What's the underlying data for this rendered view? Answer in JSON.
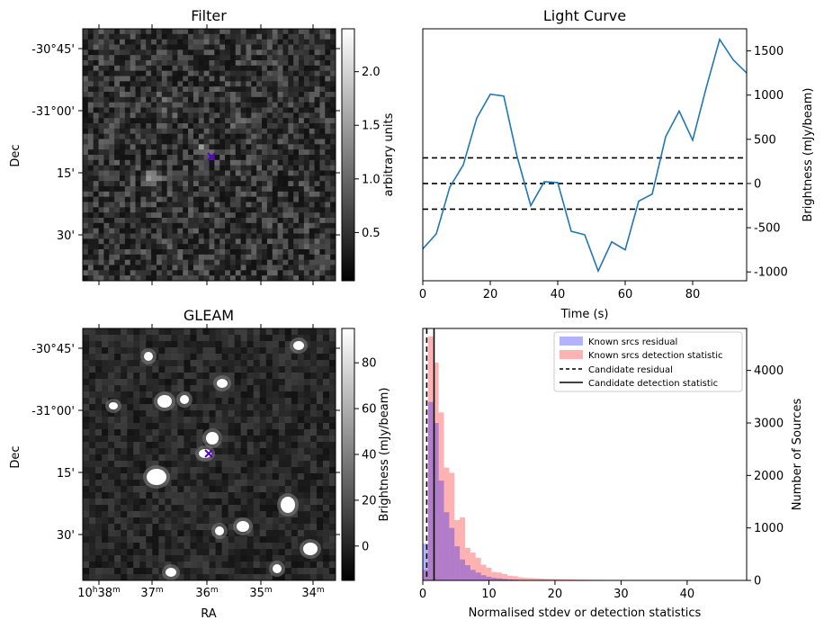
{
  "panels": {
    "filter": {
      "title": "Filter",
      "ylabel": "Dec",
      "dec_ticks": [
        "-30°45'",
        "-31°00'",
        "15'",
        "30'"
      ],
      "colorbar": {
        "label": "arbitrary units",
        "ticks": [
          "0.5",
          "1.0",
          "1.5",
          "2.0"
        ],
        "tick_values": [
          0.5,
          1.0,
          1.5,
          2.0
        ],
        "range": [
          0.05,
          2.4
        ]
      },
      "marker": {
        "symbol": "x",
        "color": "#5500cc"
      }
    },
    "gleam": {
      "title": "GLEAM",
      "ylabel": "Dec",
      "xlabel": "RA",
      "dec_ticks": [
        "-30°45'",
        "-31°00'",
        "15'",
        "30'"
      ],
      "ra_ticks": [
        "10h38m",
        "37m",
        "36m",
        "35m",
        "34m"
      ],
      "ra_tick_parts": [
        {
          "a": "10",
          "sa": "h",
          "b": "38",
          "sb": "m"
        },
        {
          "a": "37",
          "sa": "m"
        },
        {
          "a": "36",
          "sa": "m"
        },
        {
          "a": "35",
          "sa": "m"
        },
        {
          "a": "34",
          "sa": "m"
        }
      ],
      "colorbar": {
        "label": "Brightness (mJy/beam)",
        "ticks": [
          "0",
          "20",
          "40",
          "60",
          "80"
        ],
        "tick_values": [
          0,
          20,
          40,
          60,
          80
        ],
        "range": [
          -15,
          95
        ]
      },
      "marker": {
        "symbol": "x",
        "color": "#5500cc"
      }
    }
  },
  "chart_data": [
    {
      "type": "line",
      "title": "Light Curve",
      "xlabel": "Time (s)",
      "ylabel": "Brightness (mJy/beam)",
      "xlim": [
        0,
        96
      ],
      "ylim": [
        -1100,
        1750
      ],
      "x_ticks": [
        0,
        20,
        40,
        60,
        80
      ],
      "y_ticks": [
        -1000,
        -500,
        0,
        500,
        1000,
        1500
      ],
      "y_axis_side": "right",
      "series": [
        {
          "color": "#1f77b4",
          "x": [
            0,
            4,
            8,
            12,
            16,
            20,
            24,
            28,
            32,
            36,
            40,
            44,
            48,
            52,
            56,
            60,
            64,
            68,
            72,
            76,
            80,
            84,
            88,
            92,
            96
          ],
          "y": [
            -740,
            -570,
            -40,
            210,
            740,
            1010,
            990,
            300,
            -250,
            20,
            10,
            -540,
            -580,
            -990,
            -660,
            -750,
            -200,
            -120,
            530,
            820,
            490,
            1080,
            1630,
            1400,
            1250
          ]
        }
      ],
      "hlines": [
        {
          "y": 290,
          "style": "dashed",
          "color": "#000000"
        },
        {
          "y": 0,
          "style": "dashed",
          "color": "#000000"
        },
        {
          "y": -290,
          "style": "dashed",
          "color": "#000000"
        }
      ]
    },
    {
      "type": "bar",
      "subtype": "histogram",
      "xlabel": "Normalised stdev or detection statistics",
      "ylabel": "Number of Sources",
      "xlim": [
        0,
        49
      ],
      "ylim": [
        0,
        4800
      ],
      "x_ticks": [
        0,
        10,
        20,
        30,
        40
      ],
      "y_ticks": [
        0,
        1000,
        2000,
        3000,
        4000
      ],
      "y_axis_side": "right",
      "legend_position": "top-right",
      "bin_width": 0.8,
      "series": [
        {
          "name": "Known srcs residual",
          "color": "#0000ff",
          "alpha": 0.3,
          "values": [
            700,
            3400,
            3000,
            1900,
            1300,
            1000,
            650,
            400,
            290,
            200,
            150,
            100,
            70,
            50,
            40,
            30,
            20,
            15,
            10,
            8,
            5,
            5,
            3,
            2,
            2,
            1,
            1,
            1,
            0,
            0
          ]
        },
        {
          "name": "Known srcs detection statistic",
          "color": "#ff0000",
          "alpha": 0.3,
          "values": [
            200,
            4650,
            4150,
            3200,
            2150,
            2050,
            1150,
            1200,
            620,
            530,
            430,
            300,
            240,
            160,
            150,
            120,
            90,
            80,
            60,
            50,
            45,
            40,
            35,
            30,
            28,
            25,
            22,
            20,
            18,
            15,
            14,
            12,
            10,
            10,
            9,
            8,
            7,
            6,
            6,
            5,
            5,
            4,
            4,
            3,
            3,
            3,
            2,
            2,
            2,
            2,
            2,
            1,
            1,
            1,
            1,
            1,
            1,
            1,
            1,
            0,
            0
          ]
        }
      ],
      "vlines": [
        {
          "name": "Candidate residual",
          "x": 0.6,
          "style": "dashed",
          "color": "#000000"
        },
        {
          "name": "Candidate detection statistic",
          "x": 1.7,
          "style": "solid",
          "color": "#000000"
        }
      ]
    }
  ]
}
